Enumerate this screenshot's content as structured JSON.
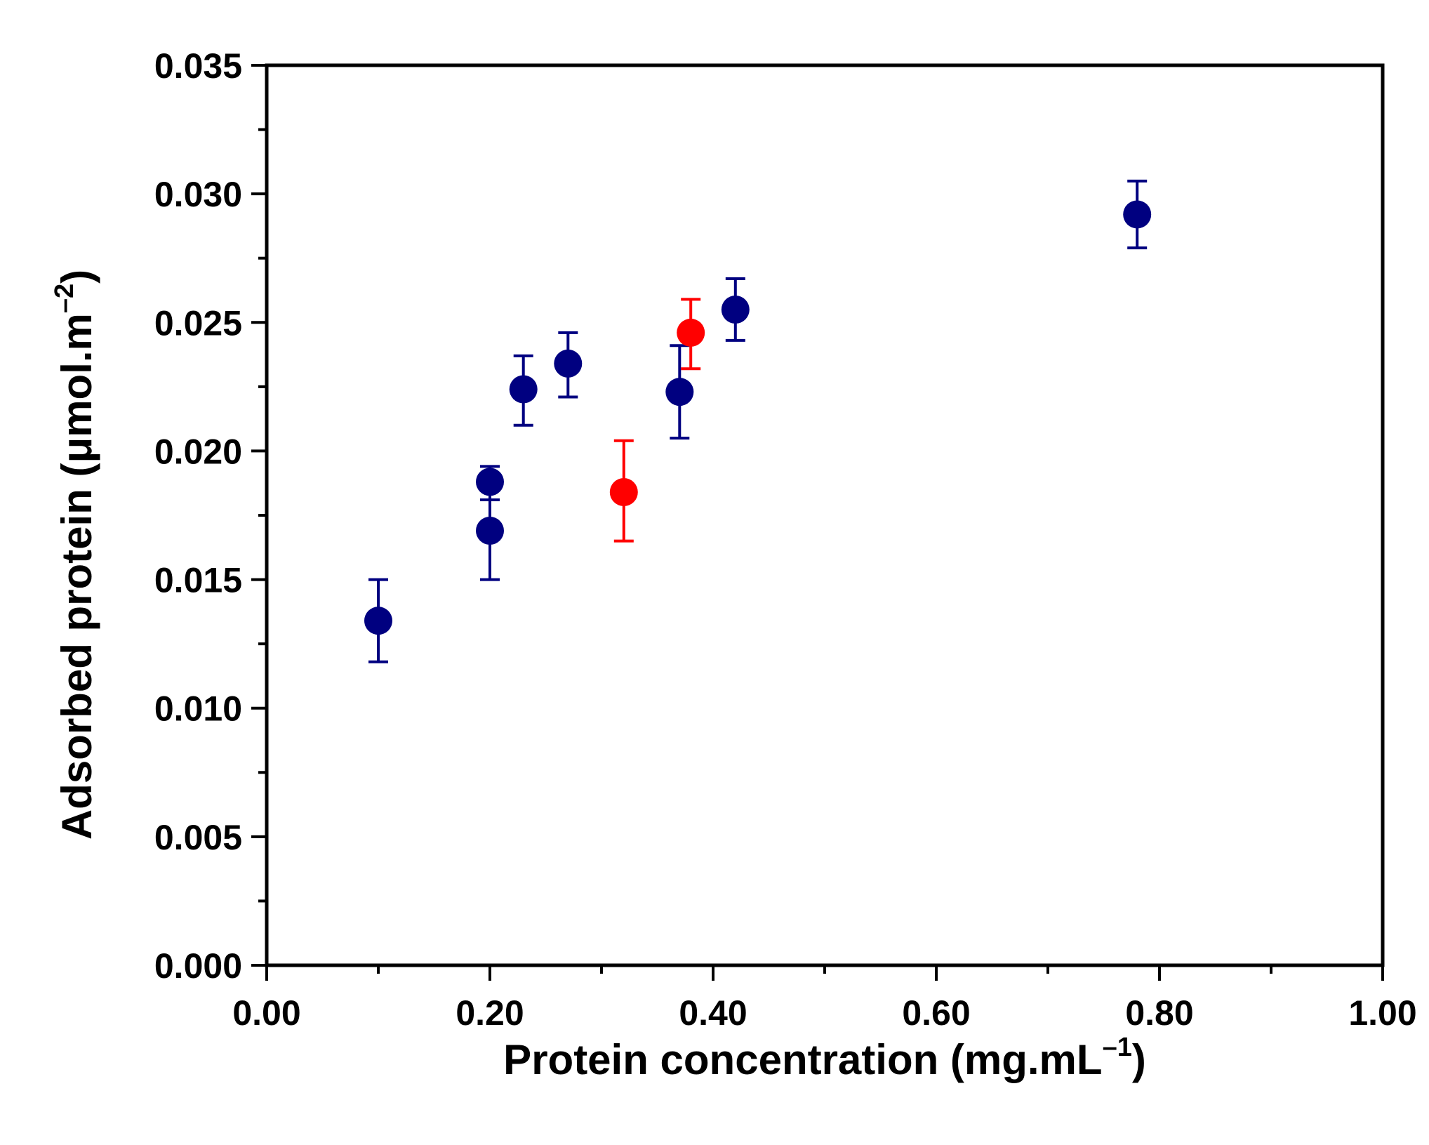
{
  "chart_data": {
    "type": "scatter",
    "xlabel": "Protein concentration (mg.mL",
    "xlabel_sup": "–1",
    "xlabel_end": ")",
    "ylabel": "Adsorbed protein (μmol.m",
    "ylabel_sup": "–2",
    "ylabel_end": ")",
    "xlim": [
      0,
      1
    ],
    "ylim": [
      0,
      0.035
    ],
    "x_ticks": [
      "0.00",
      "0.20",
      "0.40",
      "0.60",
      "0.80",
      "1.00"
    ],
    "y_ticks": [
      "0.000",
      "0.005",
      "0.010",
      "0.015",
      "0.020",
      "0.025",
      "0.030",
      "0.035"
    ],
    "grid": false,
    "series": [
      {
        "color": "#000080",
        "points": [
          {
            "x": 0.1,
            "y": 0.0134,
            "err_low": 0.0016,
            "err_high": 0.0016
          },
          {
            "x": 0.2,
            "y": 0.0169,
            "err_low": 0.0019,
            "err_high": 0.0012
          },
          {
            "x": 0.2,
            "y": 0.0188,
            "err_low": 0.0007,
            "err_high": 0.0006
          },
          {
            "x": 0.23,
            "y": 0.0224,
            "err_low": 0.0014,
            "err_high": 0.0013
          },
          {
            "x": 0.27,
            "y": 0.0234,
            "err_low": 0.0013,
            "err_high": 0.0012
          },
          {
            "x": 0.37,
            "y": 0.0223,
            "err_low": 0.0018,
            "err_high": 0.0018
          },
          {
            "x": 0.42,
            "y": 0.0255,
            "err_low": 0.0012,
            "err_high": 0.0012
          },
          {
            "x": 0.78,
            "y": 0.0292,
            "err_low": 0.0013,
            "err_high": 0.0013
          }
        ]
      },
      {
        "color": "#ff0000",
        "points": [
          {
            "x": 0.32,
            "y": 0.0184,
            "err_low": 0.0019,
            "err_high": 0.002
          },
          {
            "x": 0.38,
            "y": 0.0246,
            "err_low": 0.0014,
            "err_high": 0.0013
          }
        ]
      }
    ]
  }
}
